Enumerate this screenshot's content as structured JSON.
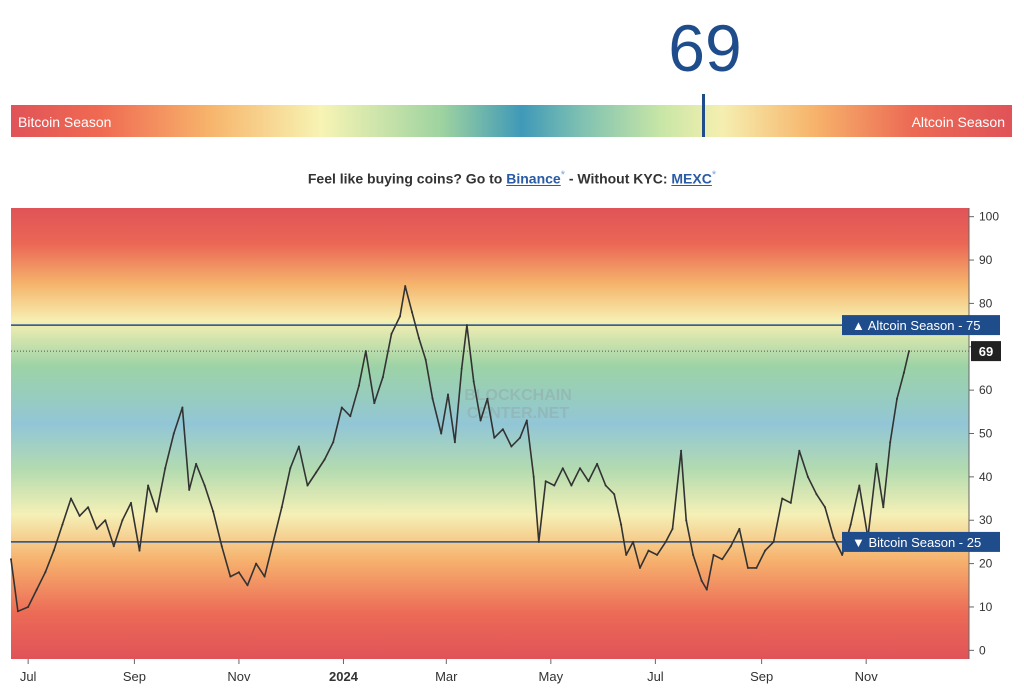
{
  "indicator": {
    "value": "69",
    "left_label": "Bitcoin Season",
    "right_label": "Altcoin Season"
  },
  "promo": {
    "prefix": "Feel like buying coins? Go to ",
    "binance": "Binance",
    "mid": " - Without KYC: ",
    "mexc": "MEXC",
    "star": "*"
  },
  "watermark": [
    "BLOCKCHAIN",
    "CENTER.NET"
  ],
  "colors": {
    "accent": "#1f4d8c",
    "flag": "#1f4d8c",
    "line": "#333333"
  },
  "chart_data": {
    "type": "line",
    "x_ticks": [
      {
        "label": "Jul",
        "date": "2023-07-01"
      },
      {
        "label": "Sep",
        "date": "2023-09-01"
      },
      {
        "label": "Nov",
        "date": "2023-11-01"
      },
      {
        "label": "2024",
        "date": "2024-01-01"
      },
      {
        "label": "Mar",
        "date": "2024-03-01"
      },
      {
        "label": "May",
        "date": "2024-05-01"
      },
      {
        "label": "Jul",
        "date": "2024-07-01"
      },
      {
        "label": "Sep",
        "date": "2024-09-01"
      },
      {
        "label": "Nov",
        "date": "2024-11-01"
      }
    ],
    "xlim": [
      "2023-06-21",
      "2024-12-31"
    ],
    "y_ticks": [
      0,
      10,
      20,
      30,
      40,
      50,
      60,
      70,
      80,
      90,
      100
    ],
    "ylim": [
      -2,
      102
    ],
    "thresholds": [
      {
        "label": "▲ Altcoin Season - 75",
        "value": 75
      },
      {
        "label": "▼ Bitcoin Season - 25",
        "value": 25
      }
    ],
    "current": {
      "label": "69",
      "value": 69
    },
    "series": [
      {
        "values": [
          [
            "2023-06-21",
            21
          ],
          [
            "2023-06-25",
            9
          ],
          [
            "2023-07-01",
            10
          ],
          [
            "2023-07-06",
            14
          ],
          [
            "2023-07-11",
            18
          ],
          [
            "2023-07-16",
            23
          ],
          [
            "2023-07-21",
            29
          ],
          [
            "2023-07-26",
            35
          ],
          [
            "2023-07-31",
            31
          ],
          [
            "2023-08-05",
            33
          ],
          [
            "2023-08-10",
            28
          ],
          [
            "2023-08-15",
            30
          ],
          [
            "2023-08-20",
            24
          ],
          [
            "2023-08-25",
            30
          ],
          [
            "2023-08-30",
            34
          ],
          [
            "2023-09-04",
            23
          ],
          [
            "2023-09-09",
            38
          ],
          [
            "2023-09-14",
            32
          ],
          [
            "2023-09-19",
            42
          ],
          [
            "2023-09-24",
            50
          ],
          [
            "2023-09-29",
            56
          ],
          [
            "2023-10-03",
            37
          ],
          [
            "2023-10-07",
            43
          ],
          [
            "2023-10-12",
            38
          ],
          [
            "2023-10-17",
            32
          ],
          [
            "2023-10-22",
            24
          ],
          [
            "2023-10-27",
            17
          ],
          [
            "2023-11-01",
            18
          ],
          [
            "2023-11-06",
            15
          ],
          [
            "2023-11-11",
            20
          ],
          [
            "2023-11-16",
            17
          ],
          [
            "2023-11-21",
            25
          ],
          [
            "2023-11-26",
            33
          ],
          [
            "2023-12-01",
            42
          ],
          [
            "2023-12-06",
            47
          ],
          [
            "2023-12-11",
            38
          ],
          [
            "2023-12-16",
            41
          ],
          [
            "2023-12-21",
            44
          ],
          [
            "2023-12-26",
            48
          ],
          [
            "2023-12-31",
            56
          ],
          [
            "2024-01-05",
            54
          ],
          [
            "2024-01-10",
            61
          ],
          [
            "2024-01-14",
            69
          ],
          [
            "2024-01-19",
            57
          ],
          [
            "2024-01-24",
            63
          ],
          [
            "2024-01-29",
            73
          ],
          [
            "2024-02-03",
            77
          ],
          [
            "2024-02-06",
            84
          ],
          [
            "2024-02-10",
            78
          ],
          [
            "2024-02-14",
            72
          ],
          [
            "2024-02-18",
            67
          ],
          [
            "2024-02-22",
            58
          ],
          [
            "2024-02-27",
            50
          ],
          [
            "2024-03-02",
            59
          ],
          [
            "2024-03-06",
            48
          ],
          [
            "2024-03-10",
            65
          ],
          [
            "2024-03-13",
            75
          ],
          [
            "2024-03-17",
            62
          ],
          [
            "2024-03-21",
            53
          ],
          [
            "2024-03-25",
            58
          ],
          [
            "2024-03-29",
            49
          ],
          [
            "2024-04-03",
            51
          ],
          [
            "2024-04-08",
            47
          ],
          [
            "2024-04-13",
            49
          ],
          [
            "2024-04-17",
            53
          ],
          [
            "2024-04-21",
            40
          ],
          [
            "2024-04-24",
            25
          ],
          [
            "2024-04-28",
            39
          ],
          [
            "2024-05-03",
            38
          ],
          [
            "2024-05-08",
            42
          ],
          [
            "2024-05-13",
            38
          ],
          [
            "2024-05-18",
            42
          ],
          [
            "2024-05-23",
            39
          ],
          [
            "2024-05-28",
            43
          ],
          [
            "2024-06-02",
            38
          ],
          [
            "2024-06-07",
            36
          ],
          [
            "2024-06-11",
            29
          ],
          [
            "2024-06-14",
            22
          ],
          [
            "2024-06-18",
            25
          ],
          [
            "2024-06-22",
            19
          ],
          [
            "2024-06-27",
            23
          ],
          [
            "2024-07-02",
            22
          ],
          [
            "2024-07-07",
            25
          ],
          [
            "2024-07-11",
            28
          ],
          [
            "2024-07-16",
            46
          ],
          [
            "2024-07-19",
            30
          ],
          [
            "2024-07-23",
            22
          ],
          [
            "2024-07-28",
            16
          ],
          [
            "2024-07-31",
            14
          ],
          [
            "2024-08-04",
            22
          ],
          [
            "2024-08-09",
            21
          ],
          [
            "2024-08-14",
            24
          ],
          [
            "2024-08-19",
            28
          ],
          [
            "2024-08-24",
            19
          ],
          [
            "2024-08-29",
            19
          ],
          [
            "2024-09-03",
            23
          ],
          [
            "2024-09-08",
            25
          ],
          [
            "2024-09-13",
            35
          ],
          [
            "2024-09-18",
            34
          ],
          [
            "2024-09-23",
            46
          ],
          [
            "2024-09-28",
            40
          ],
          [
            "2024-10-03",
            36
          ],
          [
            "2024-10-08",
            33
          ],
          [
            "2024-10-13",
            26
          ],
          [
            "2024-10-18",
            22
          ],
          [
            "2024-10-23",
            29
          ],
          [
            "2024-10-28",
            38
          ],
          [
            "2024-11-02",
            26
          ],
          [
            "2024-11-07",
            43
          ],
          [
            "2024-11-11",
            33
          ],
          [
            "2024-11-15",
            48
          ],
          [
            "2024-11-19",
            58
          ],
          [
            "2024-11-23",
            64
          ],
          [
            "2024-11-26",
            69
          ]
        ]
      }
    ]
  }
}
